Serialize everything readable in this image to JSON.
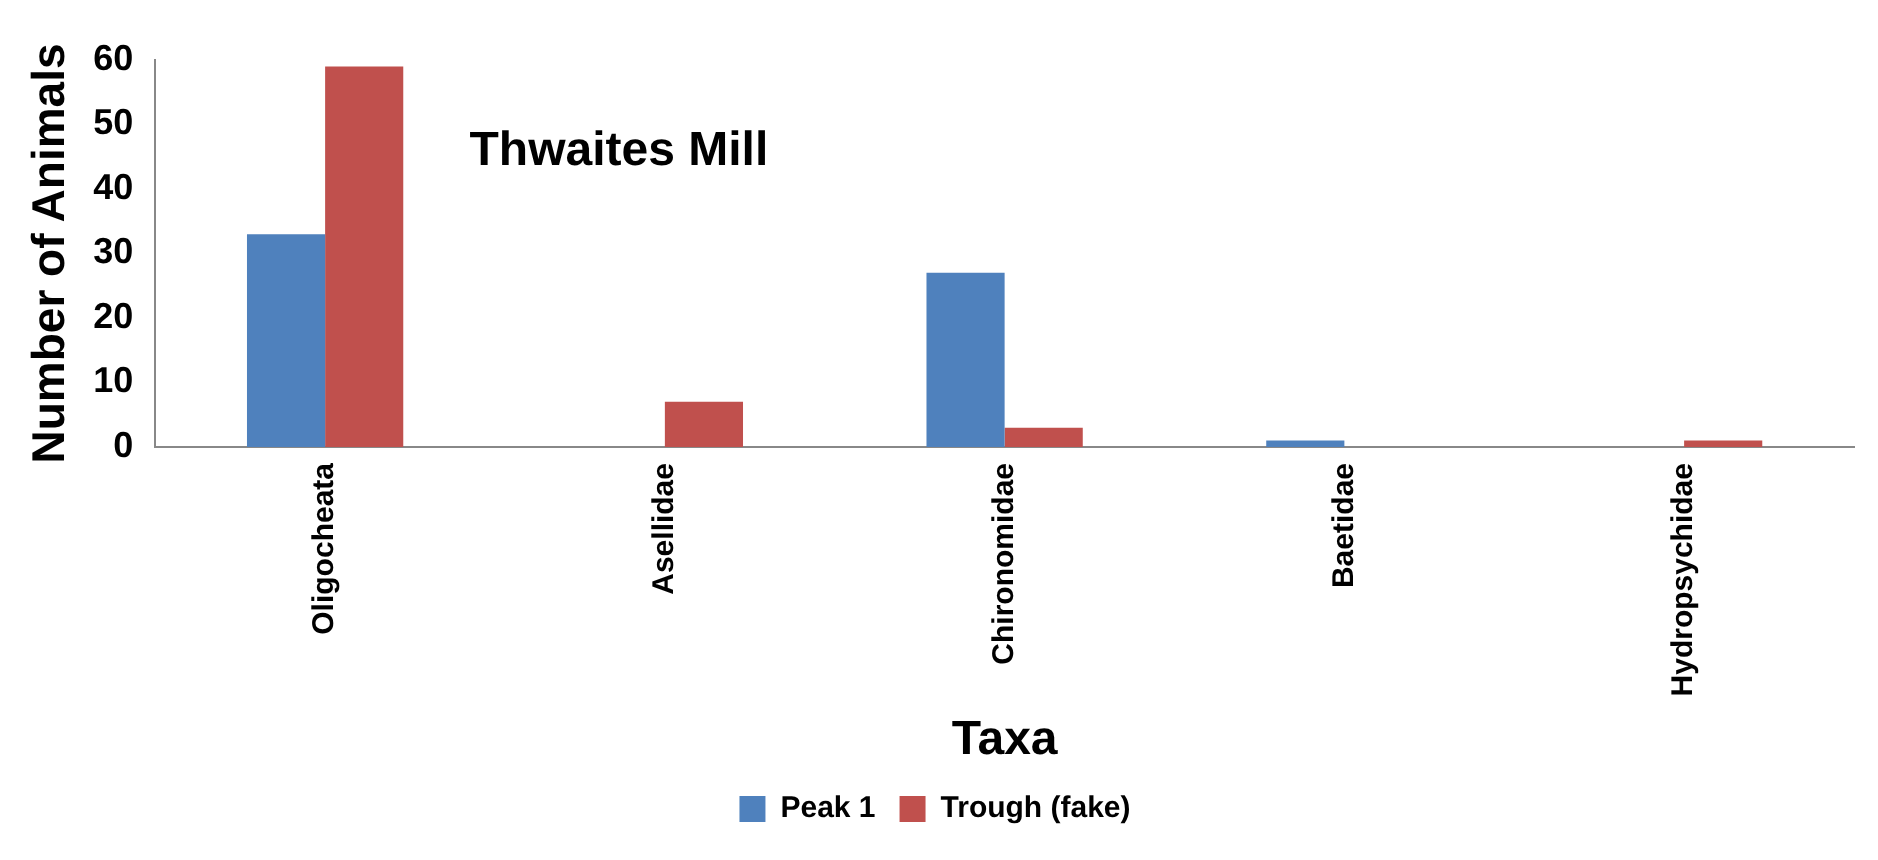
{
  "chart_data": {
    "type": "bar",
    "title": "Thwaites Mill",
    "xlabel": "Taxa",
    "ylabel": "Number of Animals",
    "categories": [
      "Oligocheata",
      "Asellidae",
      "Chironomidae",
      "Baetidae",
      "Hydropsychidae"
    ],
    "series": [
      {
        "name": "Peak 1",
        "color": "#4f81bd",
        "values": [
          33,
          0,
          27,
          1,
          0
        ]
      },
      {
        "name": "Trough (fake)",
        "color": "#c0504d",
        "values": [
          59,
          7,
          3,
          0,
          1
        ]
      }
    ],
    "ylim": [
      0,
      60
    ],
    "yticks": [
      0,
      10,
      20,
      30,
      40,
      50,
      60
    ],
    "grid": false,
    "legend": "bottom"
  }
}
